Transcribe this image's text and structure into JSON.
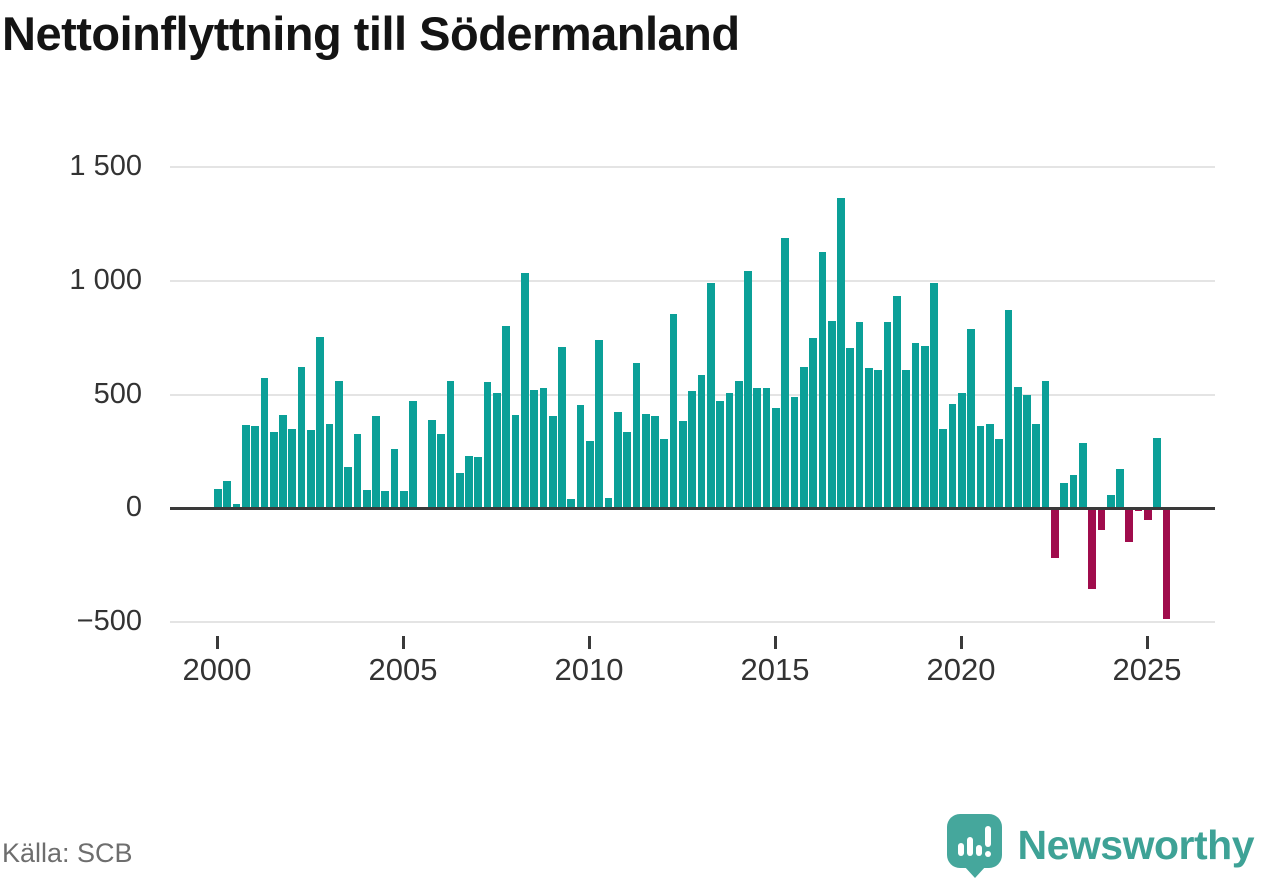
{
  "title": "Nettoinflyttning till Södermanland",
  "source": {
    "label": "Källa: SCB"
  },
  "branding": {
    "name": "Newsworthy"
  },
  "chart_data": {
    "type": "bar",
    "title": "Nettoinflyttning till Södermanland",
    "xlabel": "",
    "ylabel": "",
    "ylim": [
      -500,
      1500
    ],
    "grid": true,
    "legend": false,
    "frequency": "quarterly",
    "colors": {
      "positive": "#0ba098",
      "negative": "#a00c4c"
    },
    "y_ticks": [
      {
        "value": 1500,
        "label": "1 500"
      },
      {
        "value": 1000,
        "label": "1 000"
      },
      {
        "value": 500,
        "label": "500"
      },
      {
        "value": 0,
        "label": "0"
      },
      {
        "value": -500,
        "label": "−500"
      }
    ],
    "x_tick_labels": [
      "2000",
      "2005",
      "2010",
      "2015",
      "2020",
      "2025"
    ],
    "x": [
      "2000Q1",
      "2000Q2",
      "2000Q3",
      "2000Q4",
      "2001Q1",
      "2001Q2",
      "2001Q3",
      "2001Q4",
      "2002Q1",
      "2002Q2",
      "2002Q3",
      "2002Q4",
      "2003Q1",
      "2003Q2",
      "2003Q3",
      "2003Q4",
      "2004Q1",
      "2004Q2",
      "2004Q3",
      "2004Q4",
      "2005Q1",
      "2005Q2",
      "2005Q3",
      "2005Q4",
      "2006Q1",
      "2006Q2",
      "2006Q3",
      "2006Q4",
      "2007Q1",
      "2007Q2",
      "2007Q3",
      "2007Q4",
      "2008Q1",
      "2008Q2",
      "2008Q3",
      "2008Q4",
      "2009Q1",
      "2009Q2",
      "2009Q3",
      "2009Q4",
      "2010Q1",
      "2010Q2",
      "2010Q3",
      "2010Q4",
      "2011Q1",
      "2011Q2",
      "2011Q3",
      "2011Q4",
      "2012Q1",
      "2012Q2",
      "2012Q3",
      "2012Q4",
      "2013Q1",
      "2013Q2",
      "2013Q3",
      "2013Q4",
      "2014Q1",
      "2014Q2",
      "2014Q3",
      "2014Q4",
      "2015Q1",
      "2015Q2",
      "2015Q3",
      "2015Q4",
      "2016Q1",
      "2016Q2",
      "2016Q3",
      "2016Q4",
      "2017Q1",
      "2017Q2",
      "2017Q3",
      "2017Q4",
      "2018Q1",
      "2018Q2",
      "2018Q3",
      "2018Q4",
      "2019Q1",
      "2019Q2",
      "2019Q3",
      "2019Q4",
      "2020Q1",
      "2020Q2",
      "2020Q3",
      "2020Q4",
      "2021Q1",
      "2021Q2",
      "2021Q3",
      "2021Q4",
      "2022Q1",
      "2022Q2",
      "2022Q3",
      "2022Q4",
      "2023Q1",
      "2023Q2",
      "2023Q3",
      "2023Q4",
      "2024Q1",
      "2024Q2",
      "2024Q3",
      "2024Q4",
      "2025Q1",
      "2025Q2",
      "2025Q3"
    ],
    "values": [
      85,
      120,
      20,
      365,
      360,
      575,
      335,
      410,
      350,
      620,
      345,
      755,
      370,
      560,
      180,
      325,
      80,
      405,
      75,
      260,
      75,
      470,
      5,
      390,
      325,
      560,
      155,
      230,
      225,
      555,
      505,
      800,
      410,
      1035,
      520,
      530,
      405,
      710,
      40,
      455,
      295,
      740,
      45,
      425,
      335,
      640,
      415,
      405,
      305,
      855,
      385,
      515,
      585,
      990,
      470,
      505,
      560,
      1045,
      530,
      530,
      440,
      1190,
      490,
      620,
      750,
      1125,
      825,
      1365,
      705,
      820,
      615,
      610,
      820,
      935,
      610,
      725,
      715,
      990,
      350,
      460,
      505,
      790,
      360,
      370,
      305,
      870,
      535,
      500,
      370,
      560,
      -210,
      110,
      145,
      285,
      -350,
      -90,
      60,
      175,
      -140,
      -5,
      -45,
      310,
      -480
    ]
  }
}
